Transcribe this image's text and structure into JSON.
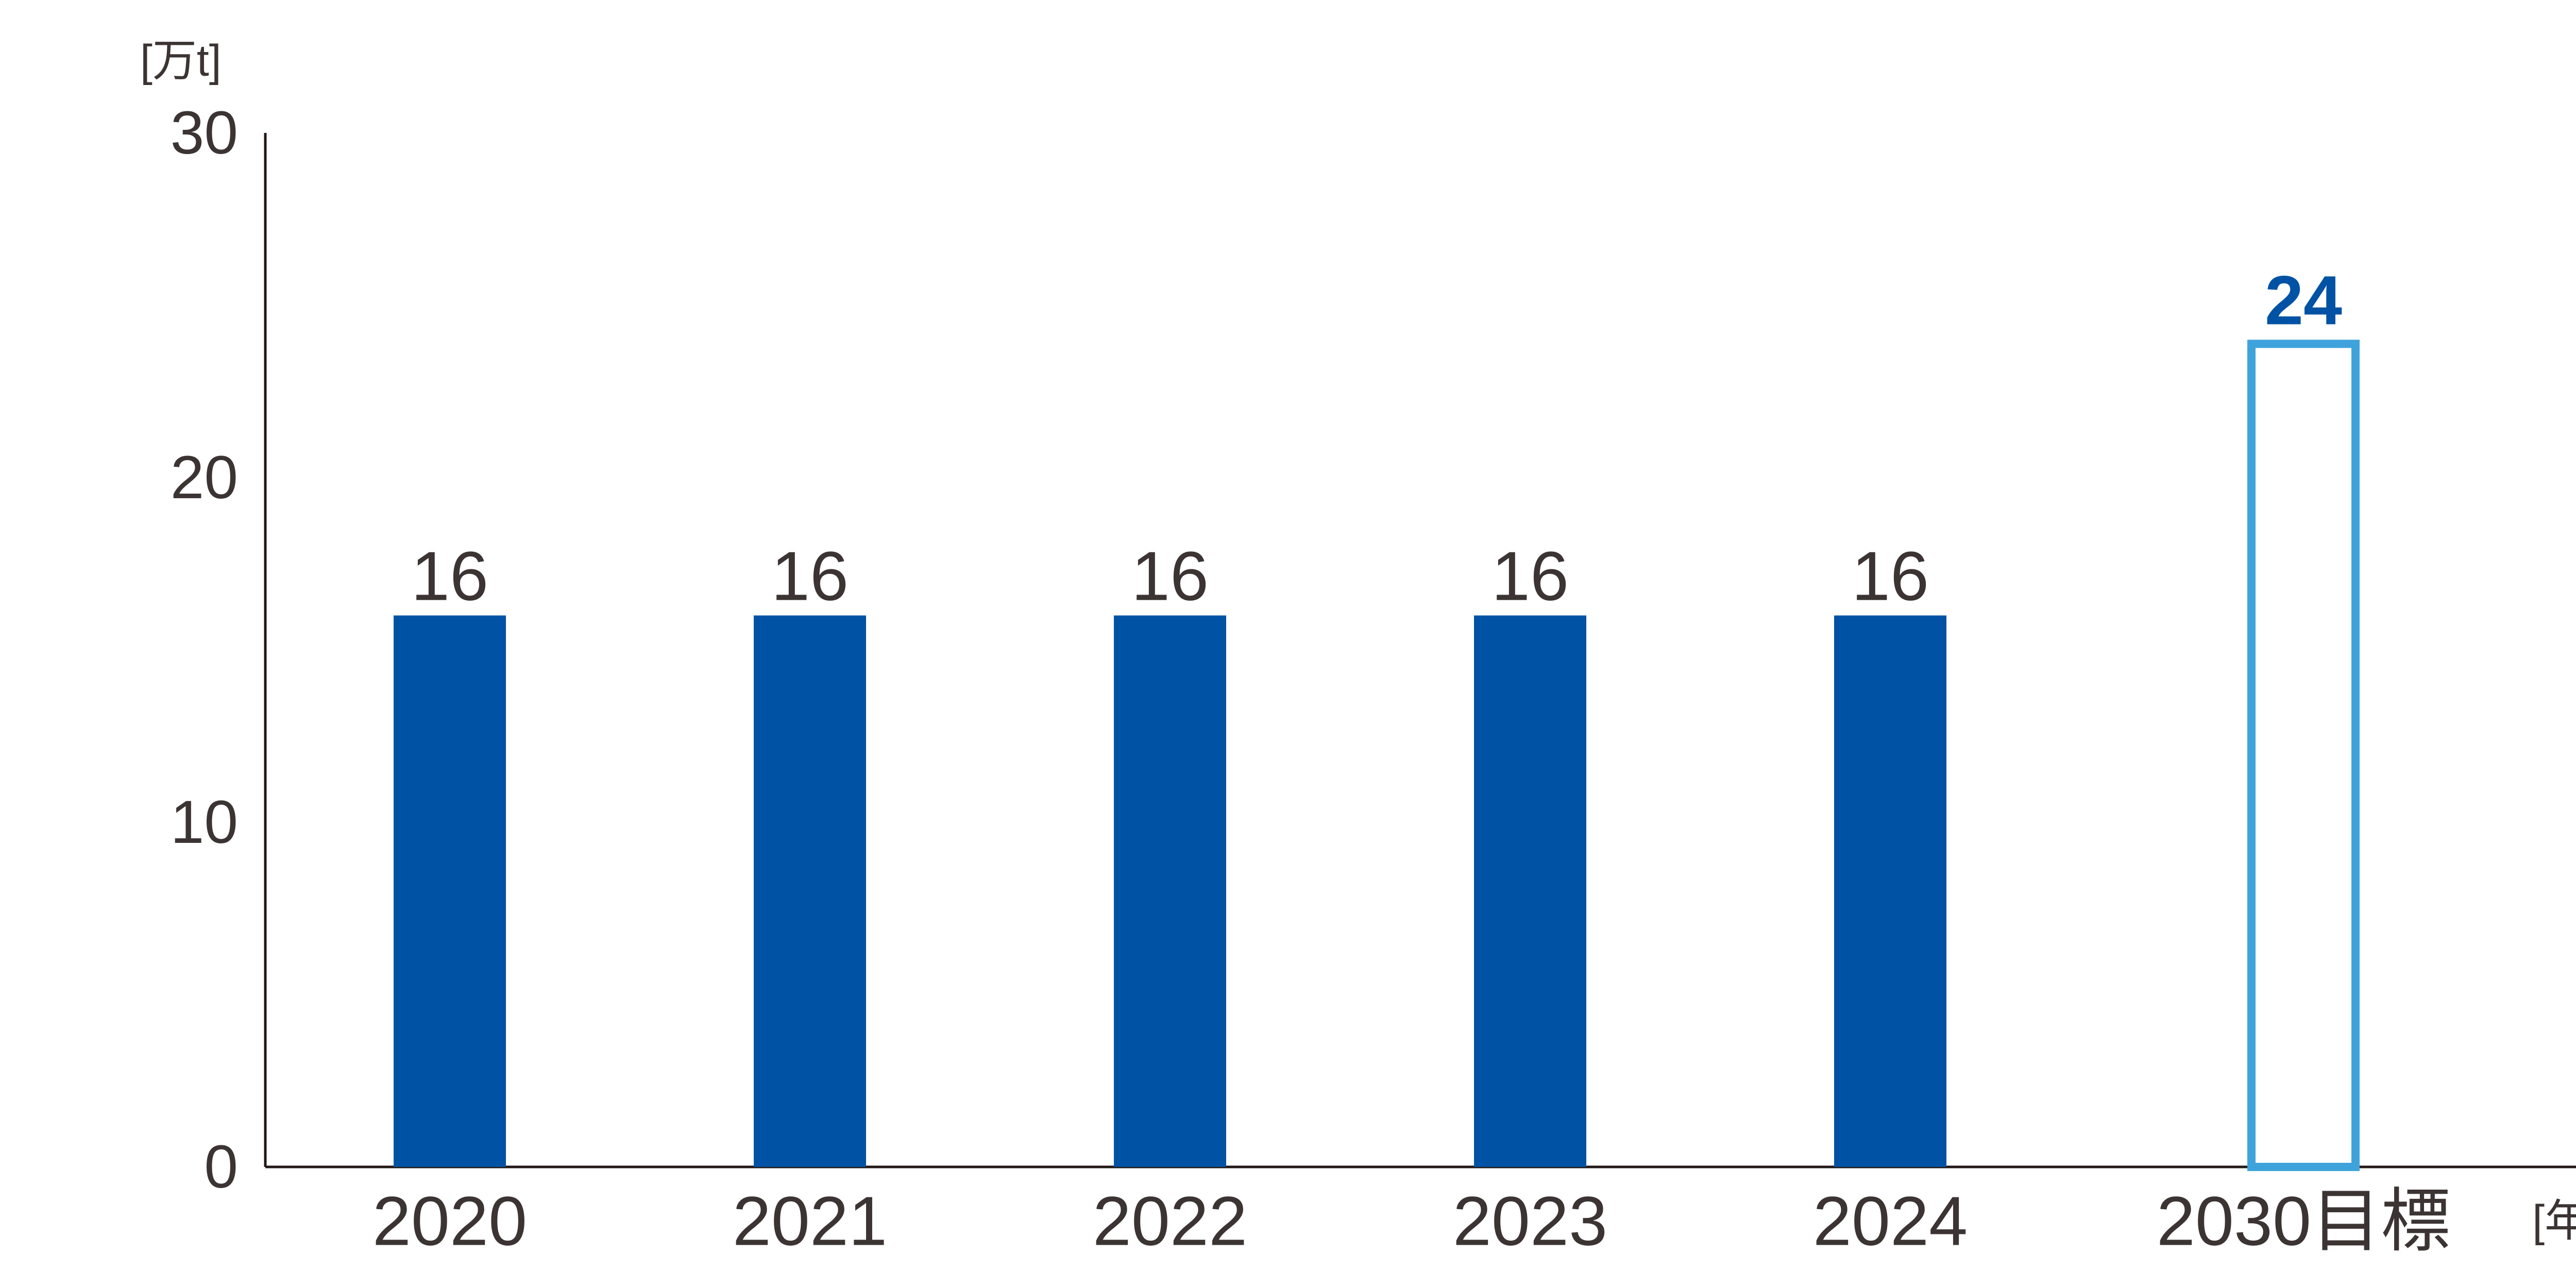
{
  "colors": {
    "bar_actual": "#0052A4",
    "bar_target_stroke": "#3FA3DB",
    "text": "#3B3433",
    "target_value_text": "#0052A4",
    "axis": "#231815"
  },
  "chart_data": {
    "type": "bar",
    "ylabel": "[万t]",
    "xlabel": "[年度]",
    "ylim": [
      0,
      30
    ],
    "yticks": [
      0,
      10,
      20,
      30
    ],
    "categories": [
      "2020",
      "2021",
      "2022",
      "2023",
      "2024",
      "2030目標"
    ],
    "values": [
      16,
      16,
      16,
      16,
      16,
      24
    ],
    "styles": [
      "filled",
      "filled",
      "filled",
      "filled",
      "filled",
      "outline"
    ],
    "grid": false,
    "legend": "none"
  }
}
